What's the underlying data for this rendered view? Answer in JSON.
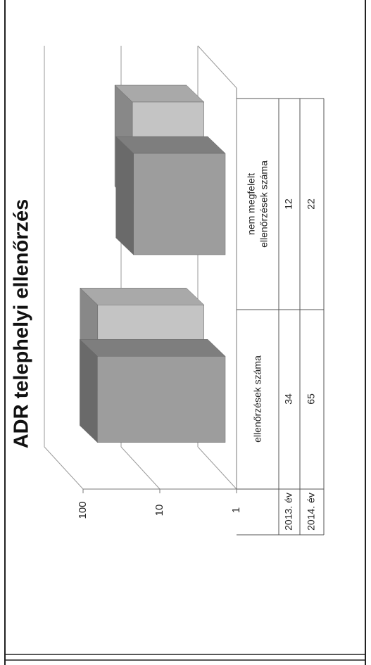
{
  "chart_data": {
    "type": "bar",
    "title": "ADR telephelyi ellenőrzés",
    "categories": [
      "ellenőrzések száma",
      [
        "nem megfelelt",
        "ellenőrzések száma"
      ]
    ],
    "series": [
      {
        "name": "2013. év",
        "values": [
          34,
          12
        ]
      },
      {
        "name": "2014. év",
        "values": [
          65,
          22
        ]
      }
    ],
    "y_scale": "log",
    "ylim": [
      1,
      100
    ],
    "yticks": [
      "1",
      "10",
      "100"
    ],
    "grid": true,
    "legend": "data-table",
    "orientation": "rotated-90",
    "colors": {
      "series_2013_front": "#c4c4c4",
      "series_2013_top": "#a9a9a9",
      "series_2013_side": "#888888",
      "series_2014_front": "#9d9d9d",
      "series_2014_top": "#7e7e7e",
      "series_2014_side": "#6a6a6a",
      "axis": "#7a7a7a",
      "grid": "#9a9a9a"
    }
  }
}
